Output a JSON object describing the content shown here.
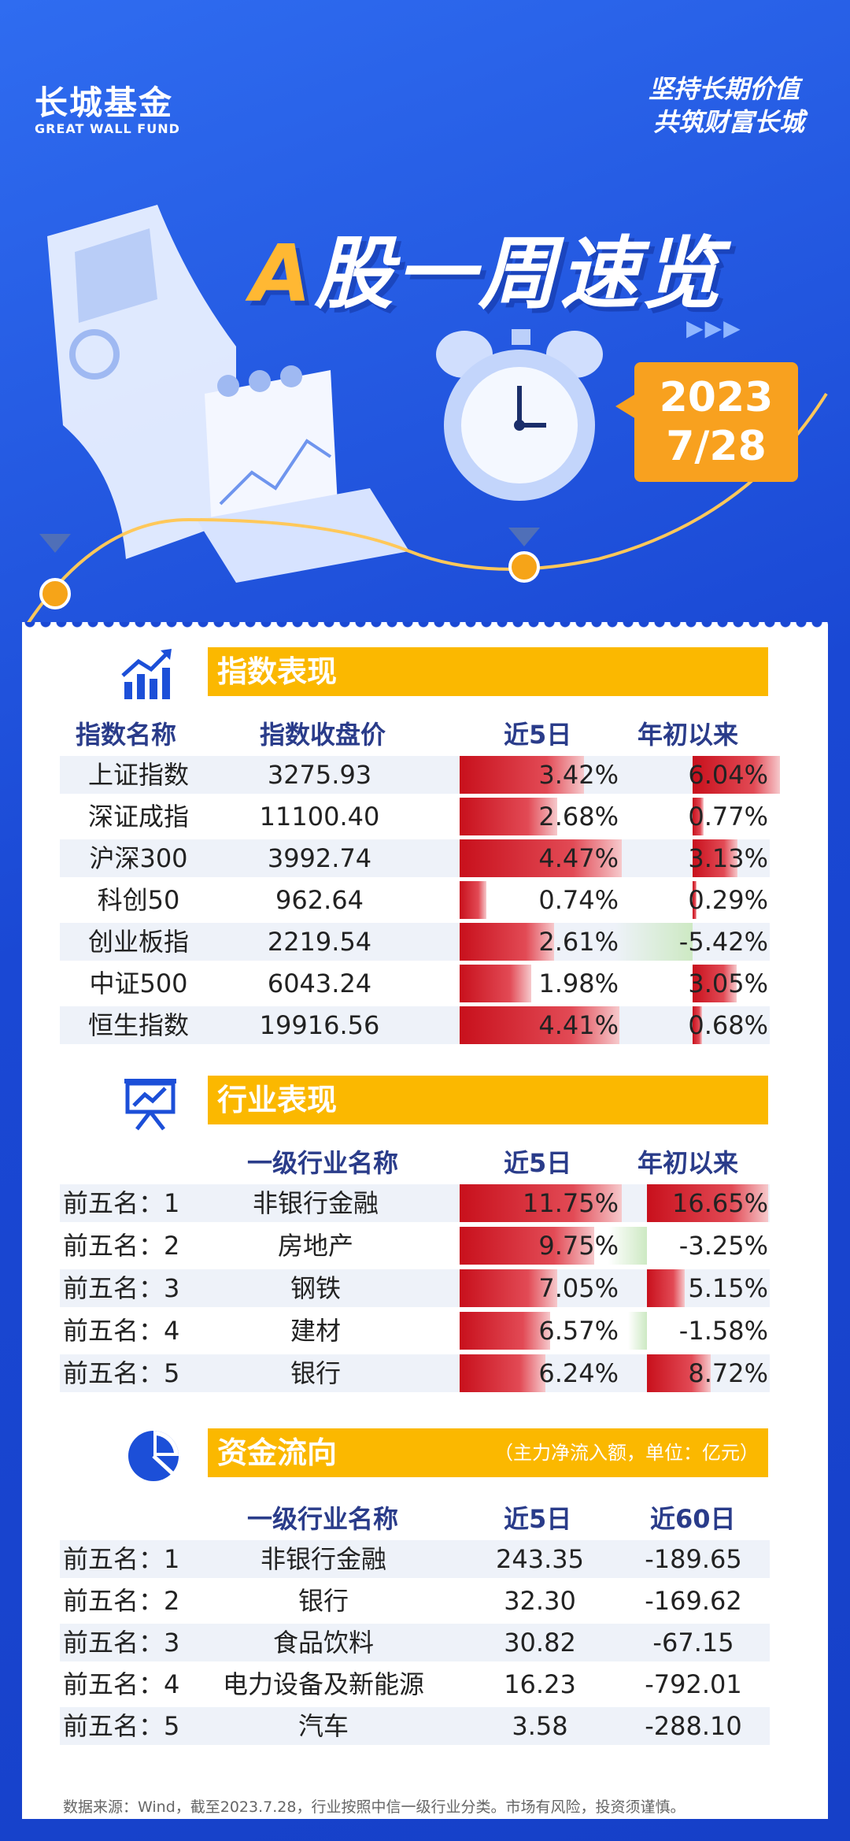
{
  "brand": {
    "name_cn": "长城基金",
    "name_en": "GREAT WALL FUND"
  },
  "slogan": [
    "坚持长期价值",
    "共筑财富长城"
  ],
  "hero": {
    "title_a": "A",
    "title_rest": "股一周速览",
    "date_year": "2023",
    "date_md": "7/28"
  },
  "colors": {
    "primary_blue": "#1c4fd8",
    "accent_yellow": "#fbb800",
    "badge_orange": "#f8a11f",
    "up_red": "#c8101c",
    "down_green": "#cde9c3"
  },
  "index_section": {
    "title": "指数表现",
    "icon": "bar-chart-icon",
    "headers": [
      "指数名称",
      "指数收盘价",
      "近5日",
      "年初以来"
    ],
    "rows": [
      {
        "name": "上证指数",
        "close": "3275.93",
        "d5": "3.42%",
        "ytd": "6.04%",
        "d5v": 3.42,
        "ytdv": 6.04
      },
      {
        "name": "深证成指",
        "close": "11100.40",
        "d5": "2.68%",
        "ytd": "0.77%",
        "d5v": 2.68,
        "ytdv": 0.77
      },
      {
        "name": "沪深300",
        "close": "3992.74",
        "d5": "4.47%",
        "ytd": "3.13%",
        "d5v": 4.47,
        "ytdv": 3.13
      },
      {
        "name": "科创50",
        "close": "962.64",
        "d5": "0.74%",
        "ytd": "0.29%",
        "d5v": 0.74,
        "ytdv": 0.29
      },
      {
        "name": "创业板指",
        "close": "2219.54",
        "d5": "2.61%",
        "ytd": "-5.42%",
        "d5v": 2.61,
        "ytdv": -5.42
      },
      {
        "name": "中证500",
        "close": "6043.24",
        "d5": "1.98%",
        "ytd": "3.05%",
        "d5v": 1.98,
        "ytdv": 3.05
      },
      {
        "name": "恒生指数",
        "close": "19916.56",
        "d5": "4.41%",
        "ytd": "0.68%",
        "d5v": 4.41,
        "ytdv": 0.68
      }
    ]
  },
  "industry_section": {
    "title": "行业表现",
    "icon": "presentation-chart-icon",
    "headers": [
      "",
      "一级行业名称",
      "近5日",
      "年初以来"
    ],
    "rows": [
      {
        "rank": "前五名：1",
        "name": "非银行金融",
        "d5": "11.75%",
        "ytd": "16.65%",
        "d5v": 11.75,
        "ytdv": 16.65
      },
      {
        "rank": "前五名：2",
        "name": "房地产",
        "d5": "9.75%",
        "ytd": "-3.25%",
        "d5v": 9.75,
        "ytdv": -3.25
      },
      {
        "rank": "前五名：3",
        "name": "钢铁",
        "d5": "7.05%",
        "ytd": "5.15%",
        "d5v": 7.05,
        "ytdv": 5.15
      },
      {
        "rank": "前五名：4",
        "name": "建材",
        "d5": "6.57%",
        "ytd": "-1.58%",
        "d5v": 6.57,
        "ytdv": -1.58
      },
      {
        "rank": "前五名：5",
        "name": "银行",
        "d5": "6.24%",
        "ytd": "8.72%",
        "d5v": 6.24,
        "ytdv": 8.72
      }
    ]
  },
  "flow_section": {
    "title": "资金流向",
    "note": "（主力净流入额，单位：亿元）",
    "icon": "pie-chart-icon",
    "headers": [
      "",
      "一级行业名称",
      "近5日",
      "近60日"
    ],
    "rows": [
      {
        "rank": "前五名：1",
        "name": "非银行金融",
        "d5": "243.35",
        "d60": "-189.65"
      },
      {
        "rank": "前五名：2",
        "name": "银行",
        "d5": "32.30",
        "d60": "-169.62"
      },
      {
        "rank": "前五名：3",
        "name": "食品饮料",
        "d5": "30.82",
        "d60": "-67.15"
      },
      {
        "rank": "前五名：4",
        "name": "电力设备及新能源",
        "d5": "16.23",
        "d60": "-792.01"
      },
      {
        "rank": "前五名：5",
        "name": "汽车",
        "d5": "3.58",
        "d60": "-288.10"
      }
    ]
  },
  "footer": "数据来源：Wind，截至2023.7.28，行业按照中信一级行业分类。市场有风险，投资须谨慎。"
}
